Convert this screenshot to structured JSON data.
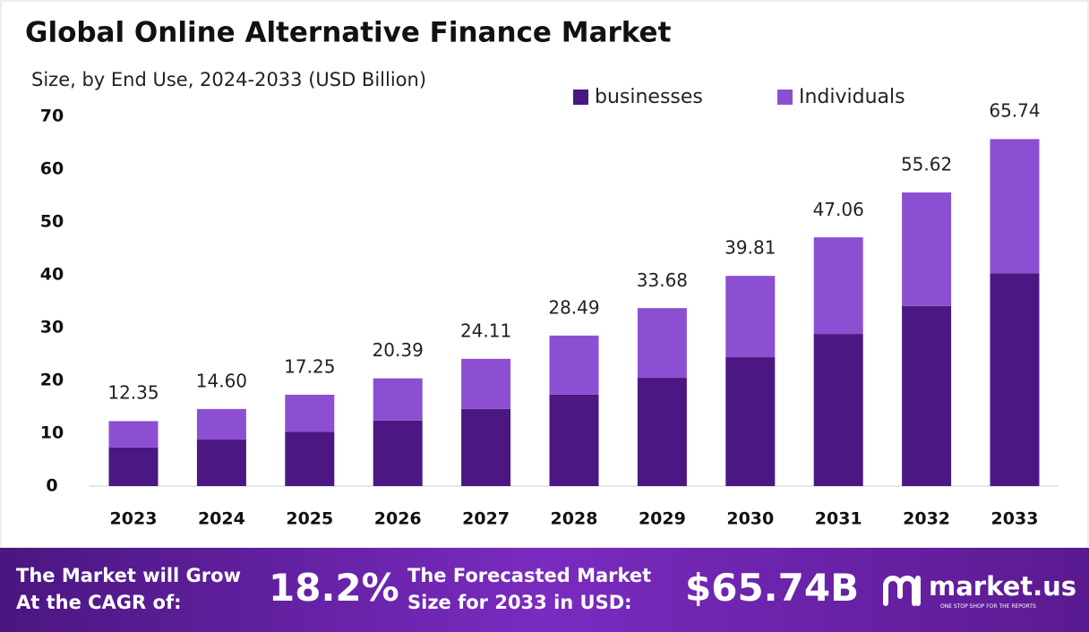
{
  "chart_data": {
    "type": "stacked_bar",
    "title": "Global Online Alternative Finance Market",
    "subtitle": "Size, by End Use, 2024-2033 (USD Billion)",
    "categories": [
      "2023",
      "2024",
      "2025",
      "2026",
      "2027",
      "2028",
      "2029",
      "2030",
      "2031",
      "2032",
      "2033"
    ],
    "series": [
      {
        "name": "businesses",
        "color": "#4b1782",
        "values": [
          7.3,
          8.8,
          10.3,
          12.4,
          14.6,
          17.3,
          20.5,
          24.4,
          28.8,
          34.1,
          40.3
        ]
      },
      {
        "name": "Individuals",
        "color": "#8c4fd1",
        "values": [
          5.0,
          5.8,
          7.0,
          8.0,
          9.5,
          11.2,
          13.2,
          15.4,
          18.3,
          21.5,
          25.4
        ]
      }
    ],
    "totals": [
      12.35,
      14.6,
      17.25,
      20.39,
      24.11,
      28.49,
      33.68,
      39.81,
      47.06,
      55.62,
      65.74
    ],
    "value_labels": [
      "12.35",
      "14.60",
      "17.25",
      "20.39",
      "24.11",
      "28.49",
      "33.68",
      "39.81",
      "47.06",
      "55.62",
      "65.74"
    ],
    "ylim": [
      0,
      70
    ],
    "yticks": [
      0,
      10,
      20,
      30,
      40,
      50,
      60,
      70
    ],
    "grid": false,
    "legend": "top"
  },
  "footer": {
    "cagr_label": [
      "The Market will Grow",
      "At the CAGR of:"
    ],
    "cagr": "18.2%",
    "forecast_label": [
      "The Forecasted Market",
      "Size for 2033 in USD:"
    ],
    "forecast": "$65.74B",
    "brand": "market.us",
    "tagline": "ONE STOP SHOP FOR THE REPORTS"
  }
}
